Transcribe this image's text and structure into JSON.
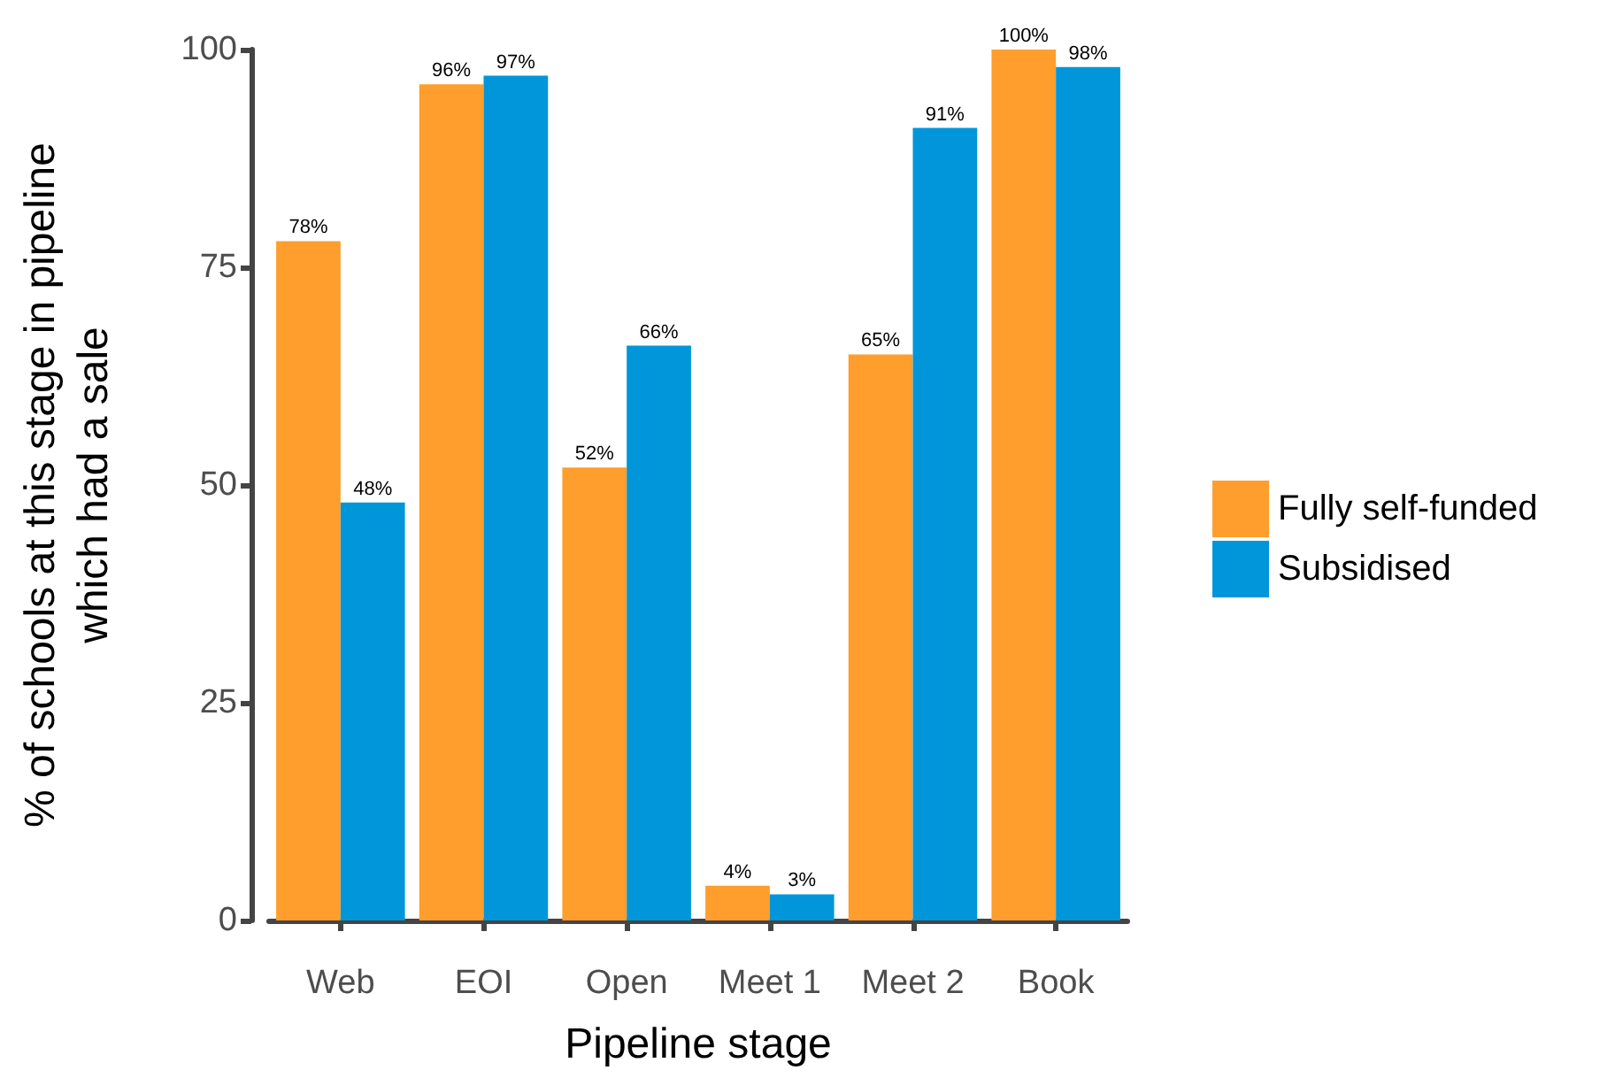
{
  "chart_data": {
    "type": "bar",
    "xlabel": "Pipeline stage",
    "ylabel": "% of schools at this stage in pipeline\nwhich had a sale",
    "categories": [
      "Web",
      "EOI",
      "Open",
      "Meet 1",
      "Meet 2",
      "Book"
    ],
    "series": [
      {
        "name": "Fully self-funded",
        "color": "#ff9e2c",
        "values": [
          78,
          96,
          52,
          4,
          65,
          100
        ],
        "value_labels": [
          "78%",
          "96%",
          "52%",
          "4%",
          "65%",
          "100%"
        ]
      },
      {
        "name": "Subsidised",
        "color": "#0096d9",
        "values": [
          48,
          97,
          66,
          3,
          91,
          98
        ],
        "value_labels": [
          "48%",
          "97%",
          "66%",
          "3%",
          "91%",
          "98%"
        ]
      }
    ],
    "ylim": [
      0,
      100
    ],
    "yticks": [
      0,
      25,
      50,
      75,
      100
    ],
    "grid": false,
    "legend": "right"
  }
}
